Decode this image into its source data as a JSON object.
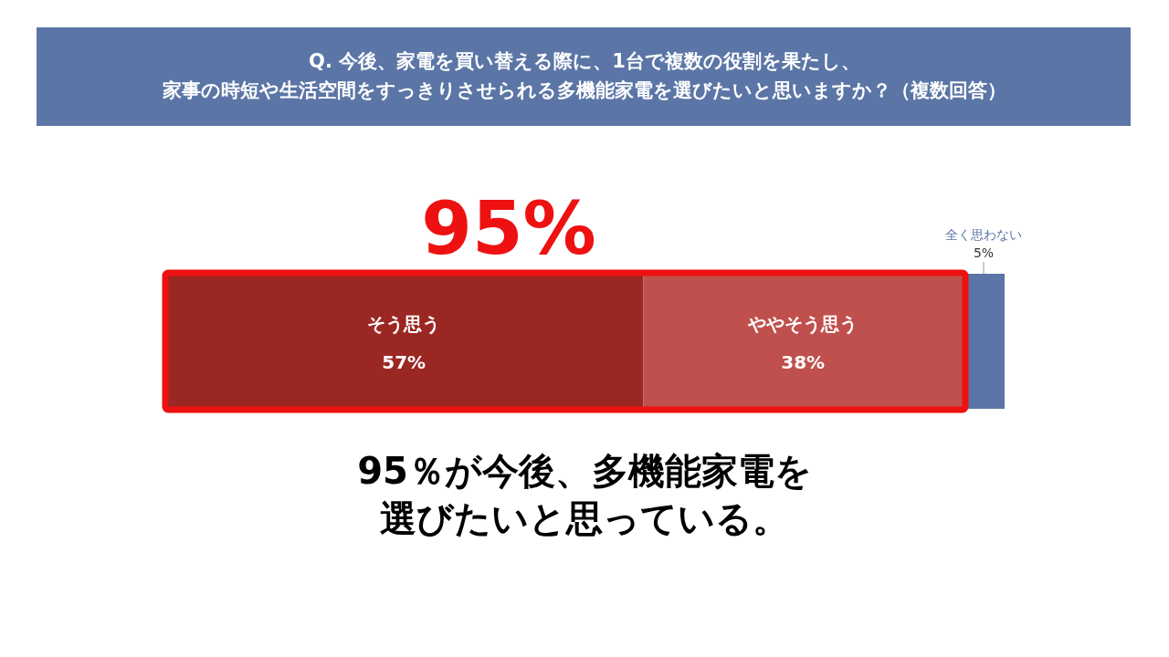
{
  "chart_data": {
    "type": "bar",
    "orientation": "horizontal",
    "stacked": true,
    "title": "Q. 今後、家電を買い替える際に、1台で複数の役割を果たし、家事の時短や生活空間をすっきりさせられる多機能家電を選びたいと思いますか？（複数回答）",
    "categories": [
      null
    ],
    "series": [
      {
        "name": "そう思う",
        "color": "#9b2723",
        "values": [
          57
        ],
        "value_labels": [
          "57%"
        ]
      },
      {
        "name": "ややそう思う",
        "color": "#c0504d",
        "values": [
          38
        ],
        "value_labels": [
          "38%"
        ]
      },
      {
        "name": "全く思わない",
        "color": "#5b76a6",
        "values": [
          5
        ],
        "value_labels": [
          "5%"
        ]
      }
    ],
    "annotations": [
      "95%",
      "95％が今後、多機能家電を選びたいと思っている。"
    ]
  }
}
